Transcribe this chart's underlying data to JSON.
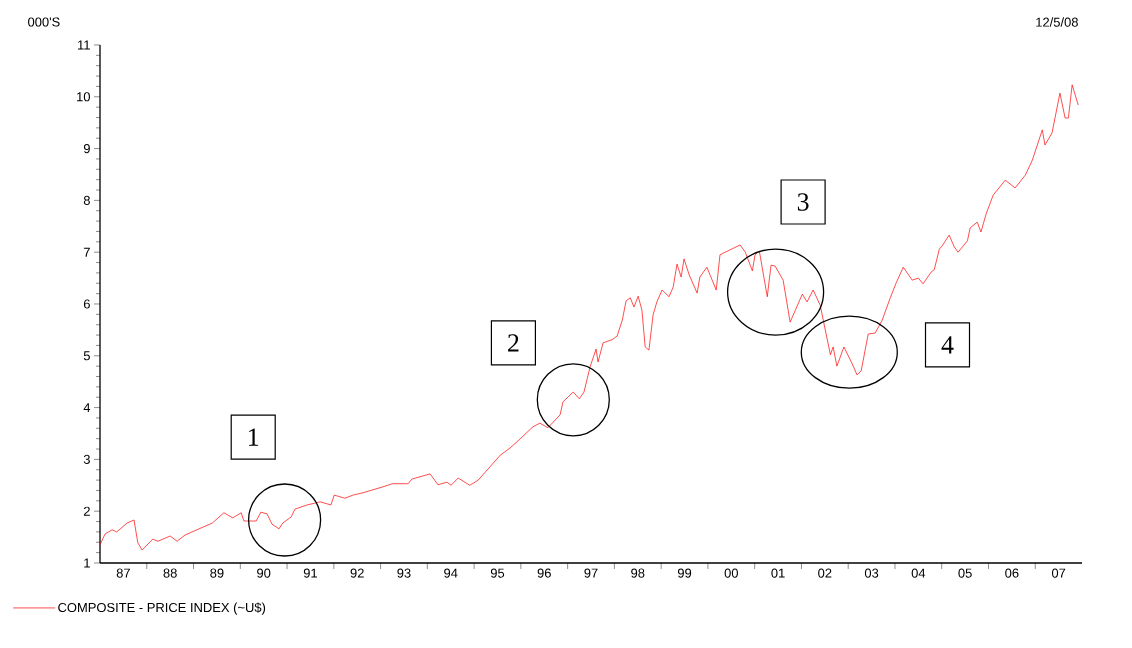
{
  "chart_data": {
    "type": "line",
    "ylabel": "000'S",
    "annotations": [
      "12/5/08",
      "1",
      "2",
      "3",
      "4"
    ],
    "series": [
      {
        "name": "COMPOSITE - PRICE INDEX (~U$)",
        "color": "#ff0000",
        "x": [
          "1987-01-01",
          "1987-02-10",
          "1987-04-04",
          "1987-05-10",
          "1987-07-29",
          "1987-09-23",
          "1987-10-22",
          "1987-11-25",
          "1988-02-17",
          "1988-03-27",
          "1988-07-01",
          "1988-08-25",
          "1988-10-26",
          "1989-01-26",
          "1989-05-25",
          "1989-08-25",
          "1989-11-03",
          "1990-01-08",
          "1990-01-29",
          "1990-05-03",
          "1990-06-09",
          "1990-07-26",
          "1990-09-05",
          "1990-10-29",
          "1990-11-28",
          "1991-02-03",
          "1991-03-02",
          "1991-06-05",
          "1991-09-16",
          "1991-12-09",
          "1992-01-04",
          "1992-03-27",
          "1992-05-28",
          "1992-08-07",
          "1993-01-19",
          "1993-04-01",
          "1993-08-03",
          "1993-09-02",
          "1994-01-22",
          "1994-03-23",
          "1994-06-02",
          "1994-07-04",
          "1994-08-28",
          "1994-11-28",
          "1995-02-03",
          "1995-07-22",
          "1995-10-08",
          "1995-12-23",
          "1996-04-04",
          "1996-05-28",
          "1996-07-29",
          "1996-11-03",
          "1996-11-25",
          "1997-02-14",
          "1997-04-01",
          "1997-05-07",
          "1997-06-23",
          "1997-08-10",
          "1997-08-25",
          "1997-10-04",
          "1997-12-13",
          "1998-01-22",
          "1998-03-02",
          "1998-04-01",
          "1998-05-03",
          "1998-06-02",
          "1998-07-04",
          "1998-08-03",
          "1998-08-28",
          "1998-09-27",
          "1998-10-29",
          "1998-11-28",
          "1999-01-08",
          "1999-03-02",
          "1999-04-04",
          "1999-05-03",
          "1999-06-05",
          "1999-06-27",
          "1999-08-07",
          "1999-10-08",
          "1999-10-29",
          "1999-12-23",
          "2000-03-05",
          "2000-04-04",
          "2000-09-09",
          "2000-10-19",
          "2000-12-13",
          "2001-01-04",
          "2001-02-07",
          "2001-04-08",
          "2001-05-07",
          "2001-06-09",
          "2001-08-10",
          "2001-10-04",
          "2002-01-08",
          "2002-02-14",
          "2002-04-01",
          "2002-05-25",
          "2002-08-14",
          "2002-09-05",
          "2002-10-04",
          "2002-11-28",
          "2003-02-03",
          "2003-03-09",
          "2003-04-11",
          "2003-06-05",
          "2003-07-29",
          "2003-09-23",
          "2003-11-25",
          "2004-01-11",
          "2004-03-05",
          "2004-05-14",
          "2004-07-01",
          "2004-08-07",
          "2004-10-11",
          "2004-11-03",
          "2004-12-13",
          "2005-01-04",
          "2005-02-28",
          "2005-04-08",
          "2005-05-07",
          "2005-07-19",
          "2005-08-10",
          "2005-10-04",
          "2005-11-03",
          "2005-12-13",
          "2006-02-07",
          "2006-05-10",
          "2006-07-26",
          "2006-10-15",
          "2006-12-09",
          "2007-02-25",
          "2007-03-16",
          "2007-05-10",
          "2007-07-11",
          "2007-08-21",
          "2007-09-16",
          "2007-10-15",
          "2007-12-02"
        ],
        "values": [
          1.35,
          1.56,
          1.64,
          1.6,
          1.77,
          1.83,
          1.39,
          1.25,
          1.46,
          1.42,
          1.52,
          1.42,
          1.54,
          1.64,
          1.77,
          1.97,
          1.87,
          1.97,
          1.81,
          1.81,
          1.98,
          1.95,
          1.75,
          1.66,
          1.77,
          1.89,
          2.04,
          2.12,
          2.18,
          2.12,
          2.31,
          2.25,
          2.31,
          2.35,
          2.47,
          2.53,
          2.53,
          2.62,
          2.72,
          2.51,
          2.56,
          2.5,
          2.64,
          2.5,
          2.6,
          3.08,
          3.22,
          3.39,
          3.63,
          3.7,
          3.61,
          3.86,
          4.11,
          4.3,
          4.17,
          4.3,
          4.78,
          5.13,
          4.88,
          5.25,
          5.31,
          5.38,
          5.69,
          6.06,
          6.12,
          5.94,
          6.15,
          5.88,
          5.17,
          5.11,
          5.79,
          6.04,
          6.27,
          6.14,
          6.33,
          6.77,
          6.52,
          6.87,
          6.56,
          6.21,
          6.52,
          6.71,
          6.27,
          6.95,
          7.14,
          7.0,
          6.64,
          6.95,
          7.02,
          6.14,
          6.75,
          6.73,
          6.46,
          5.65,
          6.19,
          6.04,
          6.27,
          5.98,
          5.02,
          5.17,
          4.8,
          5.17,
          4.84,
          4.63,
          4.71,
          5.42,
          5.44,
          5.69,
          6.12,
          6.41,
          6.71,
          6.46,
          6.5,
          6.39,
          6.62,
          6.66,
          7.06,
          7.12,
          7.33,
          7.1,
          7.0,
          7.22,
          7.47,
          7.58,
          7.39,
          7.74,
          8.1,
          8.39,
          8.24,
          8.49,
          8.78,
          9.36,
          9.07,
          9.3,
          10.07,
          9.59,
          9.59,
          10.23,
          9.84
        ]
      }
    ],
    "xlim": [
      "1987-01-01",
      "2008-01-01"
    ],
    "xticks": [
      {
        "value": "1987-07-01",
        "label": "87"
      },
      {
        "value": "1988-07-01",
        "label": "88"
      },
      {
        "value": "1989-07-01",
        "label": "89"
      },
      {
        "value": "1990-07-01",
        "label": "90"
      },
      {
        "value": "1991-07-01",
        "label": "91"
      },
      {
        "value": "1992-07-01",
        "label": "92"
      },
      {
        "value": "1993-07-01",
        "label": "93"
      },
      {
        "value": "1994-07-01",
        "label": "94"
      },
      {
        "value": "1995-07-01",
        "label": "95"
      },
      {
        "value": "1996-07-01",
        "label": "96"
      },
      {
        "value": "1997-07-01",
        "label": "97"
      },
      {
        "value": "1998-07-01",
        "label": "98"
      },
      {
        "value": "1999-07-01",
        "label": "99"
      },
      {
        "value": "2000-07-01",
        "label": "00"
      },
      {
        "value": "2001-07-01",
        "label": "01"
      },
      {
        "value": "2002-07-01",
        "label": "02"
      },
      {
        "value": "2003-07-01",
        "label": "03"
      },
      {
        "value": "2004-07-01",
        "label": "04"
      },
      {
        "value": "2005-07-01",
        "label": "05"
      },
      {
        "value": "2006-07-01",
        "label": "06"
      },
      {
        "value": "2007-07-01",
        "label": "07"
      },
      {
        "value": "1988-01-01",
        "label": null
      },
      {
        "value": "1989-01-01",
        "label": null
      },
      {
        "value": "1990-01-01",
        "label": null
      },
      {
        "value": "1991-01-01",
        "label": null
      },
      {
        "value": "1992-01-01",
        "label": null
      },
      {
        "value": "1993-01-01",
        "label": null
      },
      {
        "value": "1994-01-01",
        "label": null
      },
      {
        "value": "1995-01-01",
        "label": null
      },
      {
        "value": "1996-01-01",
        "label": null
      },
      {
        "value": "1997-01-01",
        "label": null
      },
      {
        "value": "1998-01-01",
        "label": null
      },
      {
        "value": "1999-01-01",
        "label": null
      },
      {
        "value": "2000-01-01",
        "label": null
      },
      {
        "value": "2001-01-01",
        "label": null
      },
      {
        "value": "2002-01-01",
        "label": null
      },
      {
        "value": "2003-01-01",
        "label": null
      },
      {
        "value": "2004-01-01",
        "label": null
      },
      {
        "value": "2005-01-01",
        "label": null
      },
      {
        "value": "2006-01-01",
        "label": null
      },
      {
        "value": "2007-01-01",
        "label": null
      }
    ],
    "ylim": [
      1,
      11
    ],
    "yticks": [
      1,
      2,
      3,
      4,
      5,
      6,
      7,
      8,
      9,
      10,
      11
    ],
    "grid": false,
    "legend": "bottom left",
    "marker": "none",
    "line_style": "solid"
  }
}
